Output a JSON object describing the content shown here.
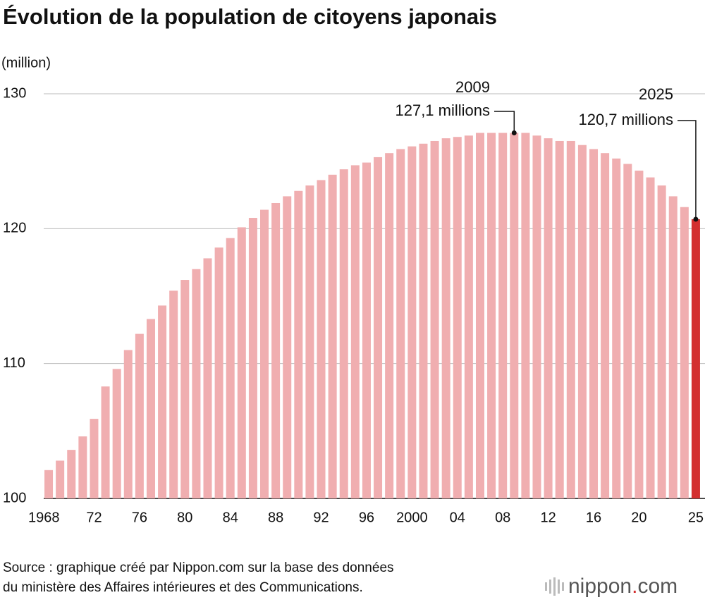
{
  "chart_data": {
    "type": "bar",
    "title": "Évolution de la population de citoyens japonais",
    "unit_label": "(million)",
    "categories": [
      "1968",
      null,
      null,
      null,
      "72",
      null,
      null,
      null,
      "76",
      null,
      null,
      null,
      "80",
      null,
      null,
      null,
      "84",
      null,
      null,
      null,
      "88",
      null,
      null,
      null,
      "92",
      null,
      null,
      null,
      "96",
      null,
      null,
      null,
      "2000",
      null,
      null,
      null,
      "04",
      null,
      null,
      null,
      "08",
      null,
      null,
      null,
      "12",
      null,
      null,
      null,
      "16",
      null,
      null,
      null,
      "20",
      null,
      null,
      null,
      null,
      "25"
    ],
    "values": [
      102.1,
      102.8,
      103.6,
      104.6,
      105.9,
      108.3,
      109.6,
      111.0,
      112.2,
      113.3,
      114.3,
      115.4,
      116.2,
      117.0,
      117.8,
      118.6,
      119.3,
      120.1,
      120.8,
      121.4,
      121.9,
      122.4,
      122.8,
      123.2,
      123.6,
      124.0,
      124.4,
      124.7,
      124.9,
      125.3,
      125.6,
      125.9,
      126.1,
      126.3,
      126.5,
      126.7,
      126.8,
      126.9,
      127.1,
      127.1,
      127.1,
      127.1,
      127.1,
      126.9,
      126.7,
      126.5,
      126.5,
      126.2,
      125.9,
      125.6,
      125.2,
      124.8,
      124.3,
      123.8,
      123.2,
      122.4,
      121.6,
      120.7
    ],
    "color": "#f0aeb0",
    "highlight_color": "#d32f2f",
    "ylim": [
      100,
      130
    ],
    "yticks": [
      100,
      110,
      120,
      130
    ],
    "grid": true,
    "annotations": [
      {
        "year": "2009",
        "text": "127,1 millions"
      },
      {
        "year": "2025",
        "text": "120,7 millions"
      }
    ],
    "source": [
      "Source : graphique créé par Nippon.com sur la base des données",
      "du ministère des Affaires intérieures et des Communications."
    ],
    "logo": [
      "nippon",
      ".",
      "com"
    ]
  }
}
